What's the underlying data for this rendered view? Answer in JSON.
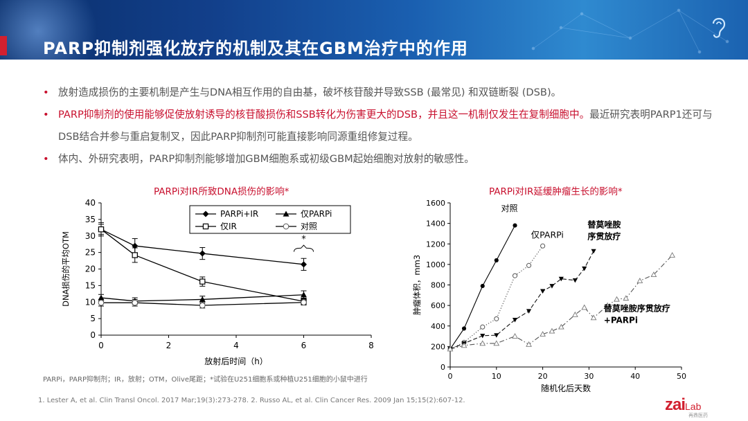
{
  "slide": {
    "title": "PARP抑制剂强化放疗的机制及其在GBM治疗中的作用",
    "bullets": [
      {
        "text": "放射造成损伤的主要机制是产生与DNA相互作用的自由基，破坏核苷酸并导致SSB (最常见) 和双链断裂 (DSB)。"
      },
      {
        "text_red": "PARP抑制剂的使用能够促使放射诱导的核苷酸损伤和SSB转化为伤害更大的DSB，并且这一机制仅发生在复制细胞中。",
        "text_rest": "最近研究表明PARP1还可与DSB结合并参与重启复制叉，因此PARP抑制剂可能直接影响同源重组修复过程。"
      },
      {
        "text": "体内、外研究表明，PARP抑制剂能够增加GBM细胞系或初级GBM起始细胞对放射的敏感性。"
      }
    ],
    "bullet_glyph": "•",
    "footnote": "PARPi，PARP抑制剂；IR，放射；OTM，Olive尾距；*试验在U251细胞系或种植U251细胞的小鼠中进行",
    "references": "1. Lester A, et al. Clin Transl Oncol. 2017 Mar;19(3):273-278.   2. Russo AL, et al. Clin Cancer Res. 2009 Jan 15;15(2):607-12.",
    "logo": {
      "main": "zai",
      "sub": "Lab",
      "cn": "再鼎医药"
    },
    "accent_color": "#c8102e",
    "header_color": "#123f8a"
  },
  "chart_data": [
    {
      "type": "line",
      "title": "PARPi对IR所致DNA损伤的影响*",
      "xlabel": "放射后时间（h）",
      "ylabel": "DNA损伤的平均OTM",
      "xlim": [
        0,
        8
      ],
      "ylim": [
        0,
        40
      ],
      "xticks": [
        0,
        2,
        4,
        6,
        8
      ],
      "yticks": [
        0,
        5,
        10,
        15,
        20,
        25,
        30,
        35,
        40
      ],
      "legend_position": "top-right",
      "annotation": "*",
      "series": [
        {
          "name": "PARPi+IR",
          "marker": "diamond-filled",
          "x": [
            0,
            1,
            3,
            6
          ],
          "y": [
            32,
            27,
            24.7,
            21.4
          ],
          "err": [
            1.5,
            2.2,
            1.8,
            1.8
          ]
        },
        {
          "name": "仅PARPi",
          "marker": "triangle-filled",
          "x": [
            0,
            1,
            3,
            6
          ],
          "y": [
            11.3,
            10.3,
            10.8,
            12.2
          ],
          "err": [
            1.0,
            1.0,
            1.0,
            1.2
          ]
        },
        {
          "name": "仅IR",
          "marker": "square-open",
          "x": [
            0,
            1,
            3,
            6
          ],
          "y": [
            32,
            24.2,
            16.2,
            10.2
          ],
          "err": [
            2.0,
            2.2,
            1.4,
            1.0
          ]
        },
        {
          "name": "对照",
          "marker": "circle-open",
          "x": [
            0,
            1,
            3,
            6
          ],
          "y": [
            9.8,
            9.8,
            9.0,
            9.9
          ],
          "err": [
            1.0,
            1.0,
            0.8,
            0.8
          ]
        }
      ]
    },
    {
      "type": "line",
      "title": "PARPi对IR延缓肿瘤生长的影响*",
      "xlabel": "随机化后天数",
      "ylabel": "肿瘤体积，mm3",
      "xlim": [
        0,
        50
      ],
      "ylim": [
        0,
        1600
      ],
      "xticks": [
        0,
        10,
        20,
        30,
        40,
        50
      ],
      "yticks": [
        0,
        200,
        400,
        600,
        800,
        1000,
        1200,
        1400,
        1600
      ],
      "series": [
        {
          "name": "对照",
          "marker": "circle-filled",
          "dash": "solid",
          "x": [
            0,
            3,
            7,
            10,
            14
          ],
          "y": [
            175,
            375,
            790,
            1040,
            1380
          ]
        },
        {
          "name": "仅PARPi",
          "marker": "circle-open",
          "dash": "dotted",
          "x": [
            0,
            3,
            7,
            10,
            14,
            17,
            20
          ],
          "y": [
            175,
            240,
            390,
            470,
            890,
            990,
            1180
          ]
        },
        {
          "name": "替莫唑胺序贯放疗",
          "label_lines": [
            "替莫唑胺",
            "序贯放疗"
          ],
          "marker": "triangle-down-filled",
          "dash": "dashed",
          "x": [
            0,
            3,
            7,
            10,
            14,
            17,
            20,
            22,
            24,
            27,
            29,
            31
          ],
          "y": [
            175,
            230,
            305,
            310,
            460,
            545,
            740,
            790,
            860,
            845,
            960,
            1130
          ]
        },
        {
          "name": "替莫唑胺序贯放疗+PARPi",
          "label_lines": [
            "替莫唑胺序贯放疗",
            "+PARPi"
          ],
          "marker": "triangle-open",
          "dash": "dashdot",
          "x": [
            0,
            3,
            7,
            10,
            14,
            17,
            20,
            22,
            24,
            27,
            29,
            31,
            34,
            36,
            38,
            41,
            44,
            48
          ],
          "y": [
            175,
            210,
            230,
            230,
            300,
            220,
            320,
            350,
            390,
            510,
            580,
            480,
            600,
            660,
            670,
            840,
            900,
            1090
          ]
        }
      ]
    }
  ]
}
